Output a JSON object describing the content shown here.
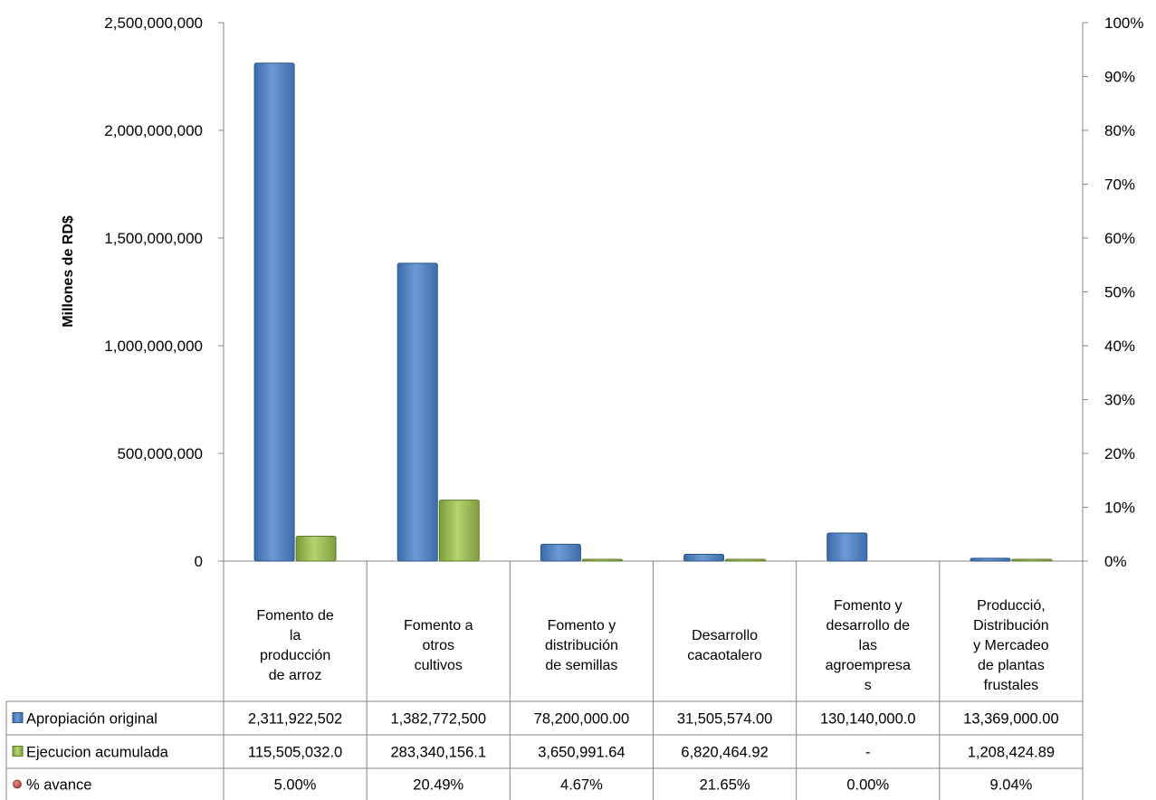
{
  "chart_data": {
    "type": "bar",
    "ylabel": "Millones de RD$",
    "ylim": [
      0,
      2500000000
    ],
    "y_ticks": [
      "0",
      "500,000,000",
      "1,000,000,000",
      "1,500,000,000",
      "2,000,000,000",
      "2,500,000,000"
    ],
    "y2lim": [
      0,
      100
    ],
    "y2_ticks": [
      "0%",
      "10%",
      "20%",
      "30%",
      "40%",
      "50%",
      "60%",
      "70%",
      "80%",
      "90%",
      "100%"
    ],
    "categories": [
      [
        "Fomento de",
        "la",
        "producción",
        "de arroz"
      ],
      [
        "Fomento a",
        "otros",
        "cultivos"
      ],
      [
        "Fomento y",
        "distribución",
        "de semillas"
      ],
      [
        "Desarrollo",
        "cacaotalero"
      ],
      [
        "Fomento y",
        "desarrollo de",
        "las",
        "agroempresa",
        "s"
      ],
      [
        "Producció,",
        "Distribución",
        "y Mercadeo",
        "de plantas",
        "frustales"
      ]
    ],
    "series": [
      {
        "name": "Apropiación original",
        "color": "#4f81bd",
        "values": [
          2311922502,
          1382772500,
          78200000,
          31505574,
          130140000,
          13369000
        ],
        "labels": [
          "2,311,922,502",
          "1,382,772,500",
          "78,200,000.00",
          "31,505,574.00",
          "130,140,000.0",
          "13,369,000.00"
        ]
      },
      {
        "name": "Ejecucion acumulada",
        "color": "#9bbb59",
        "values": [
          115505032,
          283340156.1,
          3650991.64,
          6820464.92,
          0,
          1208424.89
        ],
        "labels": [
          "115,505,032.0",
          "283,340,156.1",
          "3,650,991.64",
          "6,820,464.92",
          "-",
          "1,208,424.89"
        ]
      },
      {
        "name": "% avance",
        "color": "#c0504d",
        "axis": "secondary",
        "values": [
          5.0,
          20.49,
          4.67,
          21.65,
          0.0,
          9.04
        ],
        "labels": [
          "5.00%",
          "20.49%",
          "4.67%",
          "21.65%",
          "0.00%",
          "9.04%"
        ]
      }
    ],
    "grid": false
  }
}
